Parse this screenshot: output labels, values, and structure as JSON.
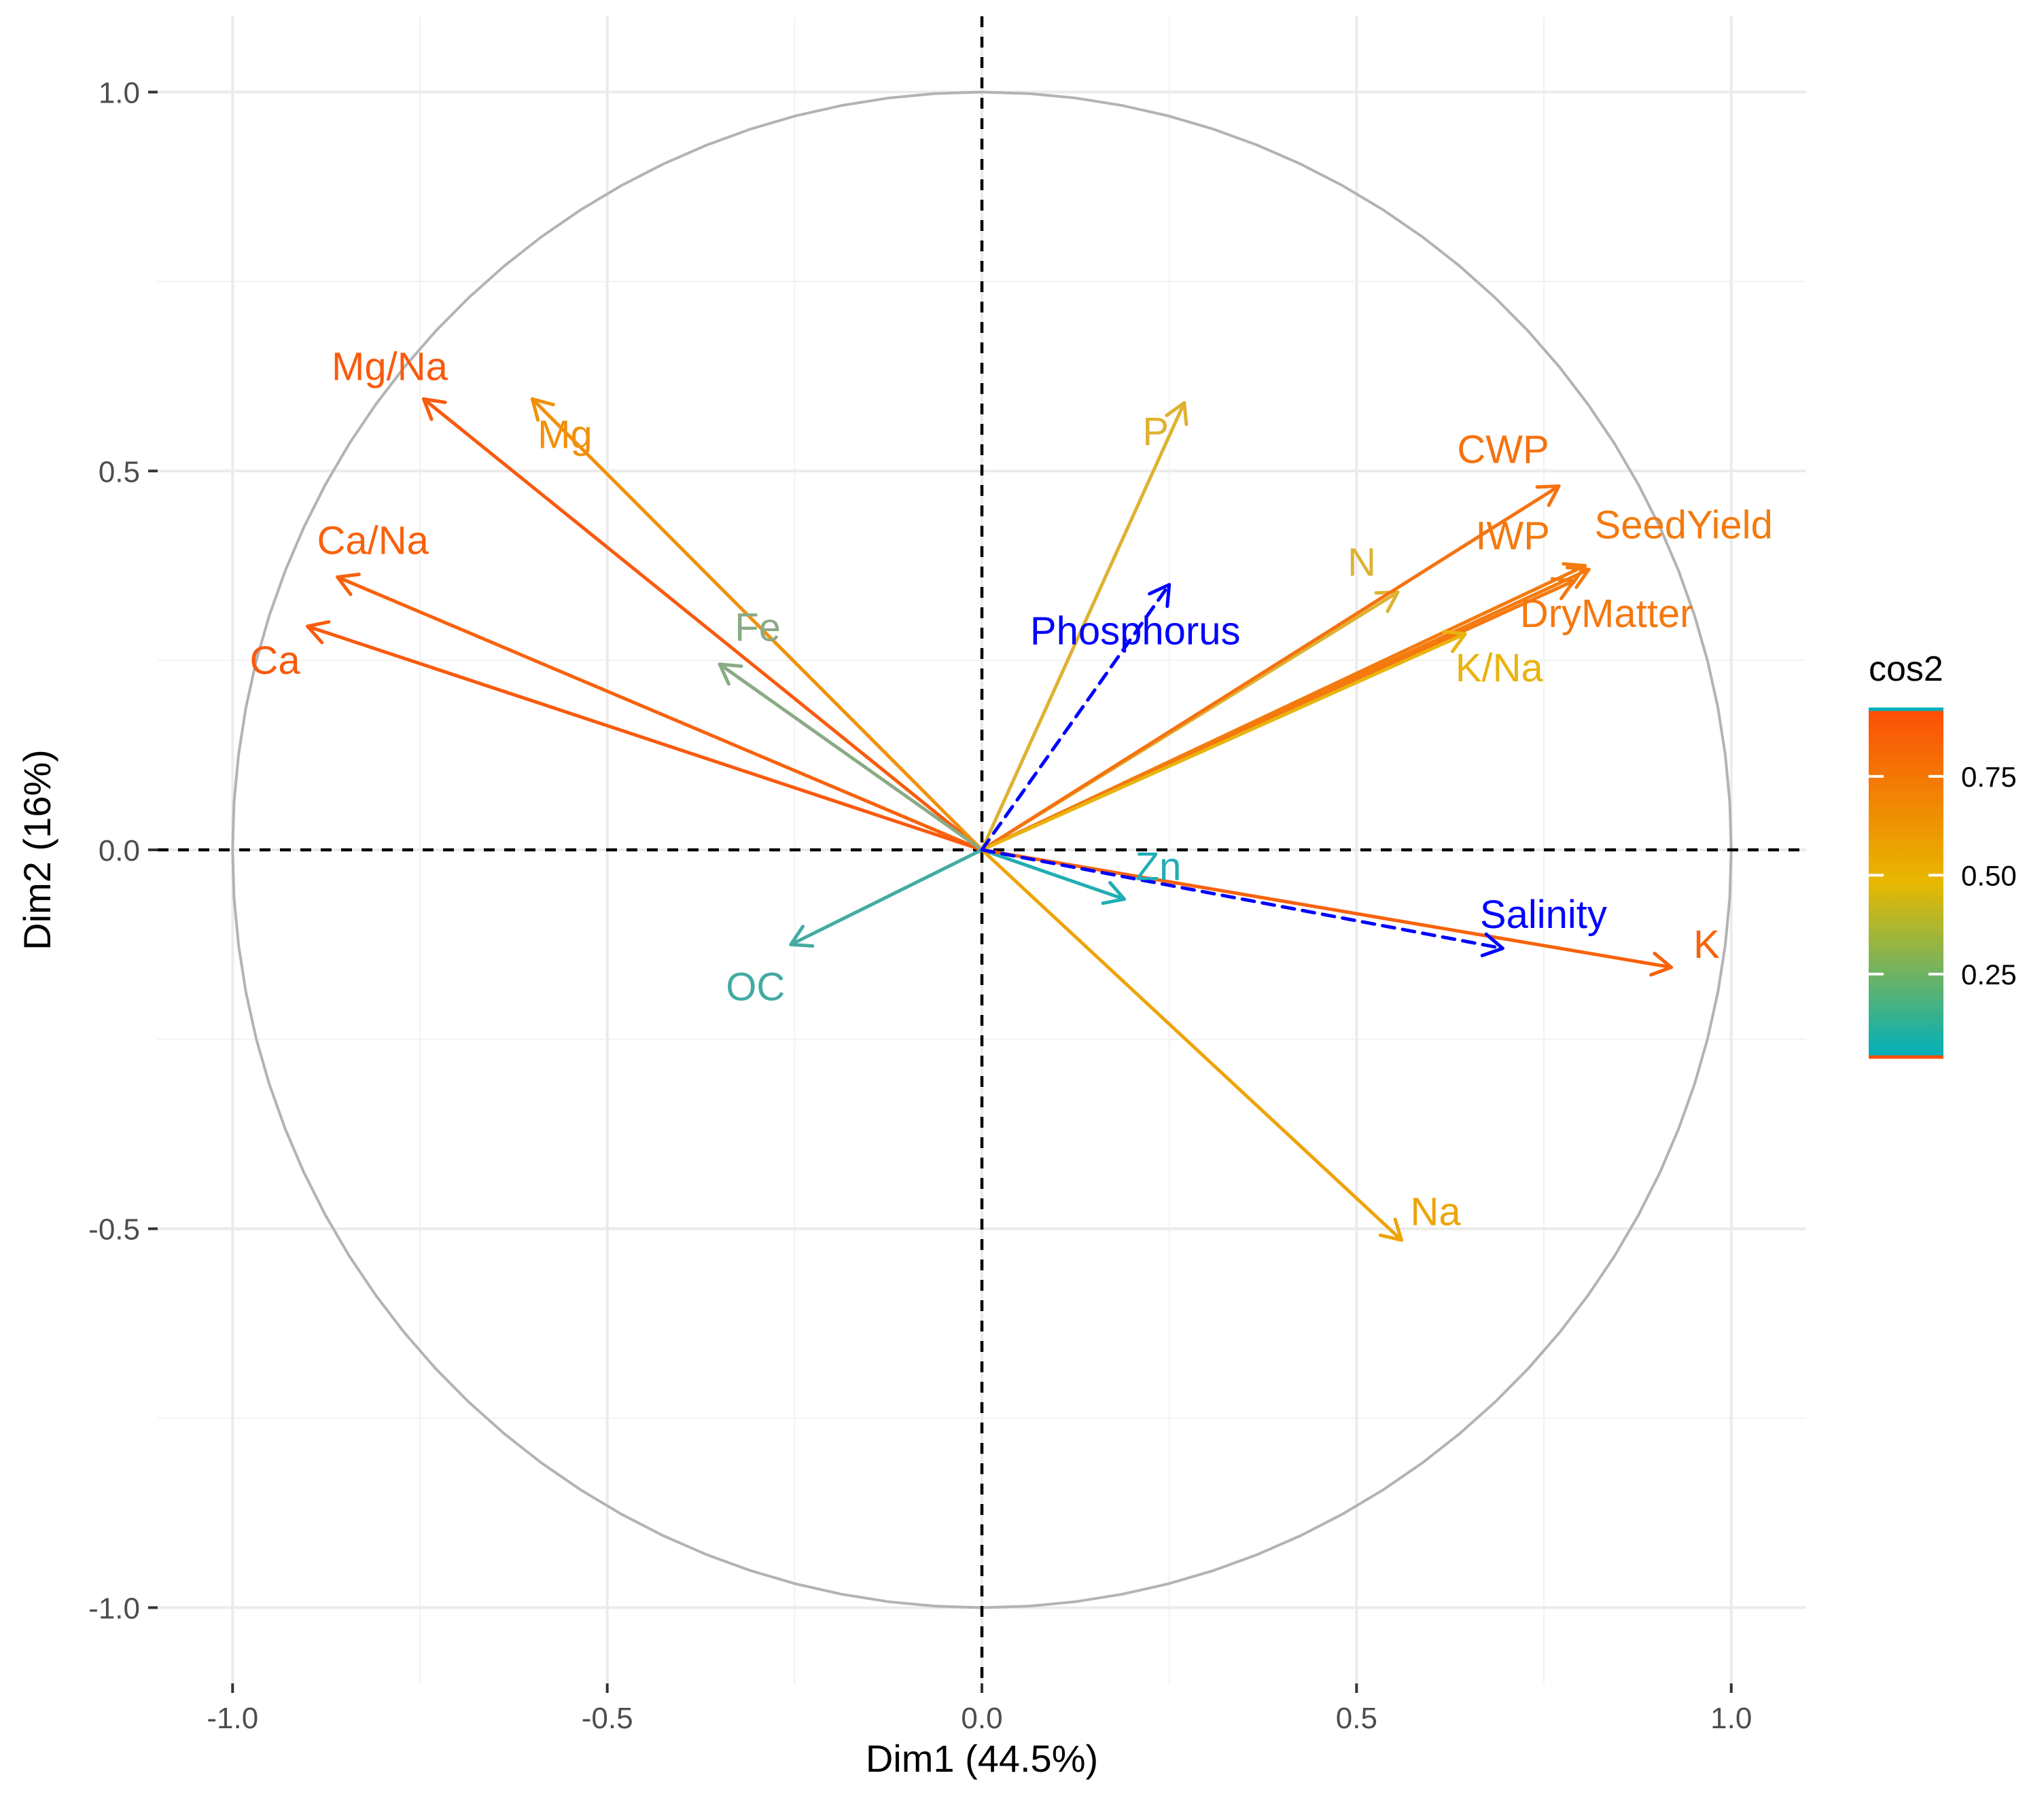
{
  "chart_data": {
    "type": "pca-variable-correlation-circle",
    "xlabel": "Dim1 (44.5%)",
    "ylabel": "Dim2 (16%)",
    "xlim": [
      -1.1,
      1.1
    ],
    "ylim": [
      -1.1,
      1.1
    ],
    "xticks": [
      -1.0,
      -0.5,
      0.0,
      0.5,
      1.0
    ],
    "xtick_labels": [
      "-1.0",
      "-0.5",
      "0.0",
      "0.5",
      "1.0"
    ],
    "yticks": [
      -1.0,
      -0.5,
      0.0,
      0.5,
      1.0
    ],
    "ytick_labels": [
      "-1.0",
      "-0.5",
      "0.0",
      "0.5",
      "1.0"
    ],
    "grid": true,
    "unit_circle": true,
    "legend": {
      "title": "cos2",
      "position": "right",
      "ticks": [
        0.25,
        0.5,
        0.75
      ],
      "tick_labels": [
        "0.25",
        "0.50",
        "0.75"
      ],
      "range": [
        0.04,
        0.92
      ],
      "gradient": [
        "#00AFBB",
        "#E7B800",
        "#FC4E07"
      ]
    },
    "variables": [
      {
        "name": "Mg/Na",
        "x": -0.745,
        "y": 0.595,
        "cos2": 0.91,
        "color": "#F95A0E"
      },
      {
        "name": "Mg",
        "x": -0.6,
        "y": 0.595,
        "cos2": 0.71,
        "color": "#F1900A"
      },
      {
        "name": "Ca/Na",
        "x": -0.86,
        "y": 0.36,
        "cos2": 0.87,
        "color": "#F8620C"
      },
      {
        "name": "Ca",
        "x": -0.9,
        "y": 0.295,
        "cos2": 0.9,
        "color": "#F95A0E"
      },
      {
        "name": "Fe",
        "x": -0.35,
        "y": 0.245,
        "cos2": 0.18,
        "color": "#8AAB85"
      },
      {
        "name": "OC",
        "x": -0.255,
        "y": -0.125,
        "cos2": 0.08,
        "color": "#43ABA2"
      },
      {
        "name": "P",
        "x": 0.27,
        "y": 0.59,
        "cos2": 0.42,
        "color": "#DEB231"
      },
      {
        "name": "N",
        "x": 0.555,
        "y": 0.34,
        "cos2": 0.42,
        "color": "#DEB231"
      },
      {
        "name": "CWP",
        "x": 0.77,
        "y": 0.48,
        "cos2": 0.82,
        "color": "#F57210"
      },
      {
        "name": "IWP",
        "x": 0.81,
        "y": 0.37,
        "cos2": 0.79,
        "color": "#F47A0E"
      },
      {
        "name": "SeedYield",
        "x": 0.805,
        "y": 0.375,
        "cos2": 0.79,
        "color": "#F47A0E"
      },
      {
        "name": "DryMatter",
        "x": 0.79,
        "y": 0.355,
        "cos2": 0.76,
        "color": "#F5780F"
      },
      {
        "name": "K/Na",
        "x": 0.645,
        "y": 0.285,
        "cos2": 0.5,
        "color": "#E8B40F"
      },
      {
        "name": "Zn",
        "x": 0.19,
        "y": -0.065,
        "cos2": 0.04,
        "color": "#20ADB5"
      },
      {
        "name": "K",
        "x": 0.92,
        "y": -0.155,
        "cos2": 0.87,
        "color": "#F8620C"
      },
      {
        "name": "Na",
        "x": 0.56,
        "y": -0.515,
        "cos2": 0.57,
        "color": "#EDA40A"
      }
    ],
    "supplementary_variables": [
      {
        "name": "Phosphorus",
        "x": 0.25,
        "y": 0.35,
        "color": "#0000FF",
        "style": "dashed"
      },
      {
        "name": "Salinity",
        "x": 0.695,
        "y": -0.13,
        "color": "#0000FF",
        "style": "dashed"
      }
    ]
  }
}
